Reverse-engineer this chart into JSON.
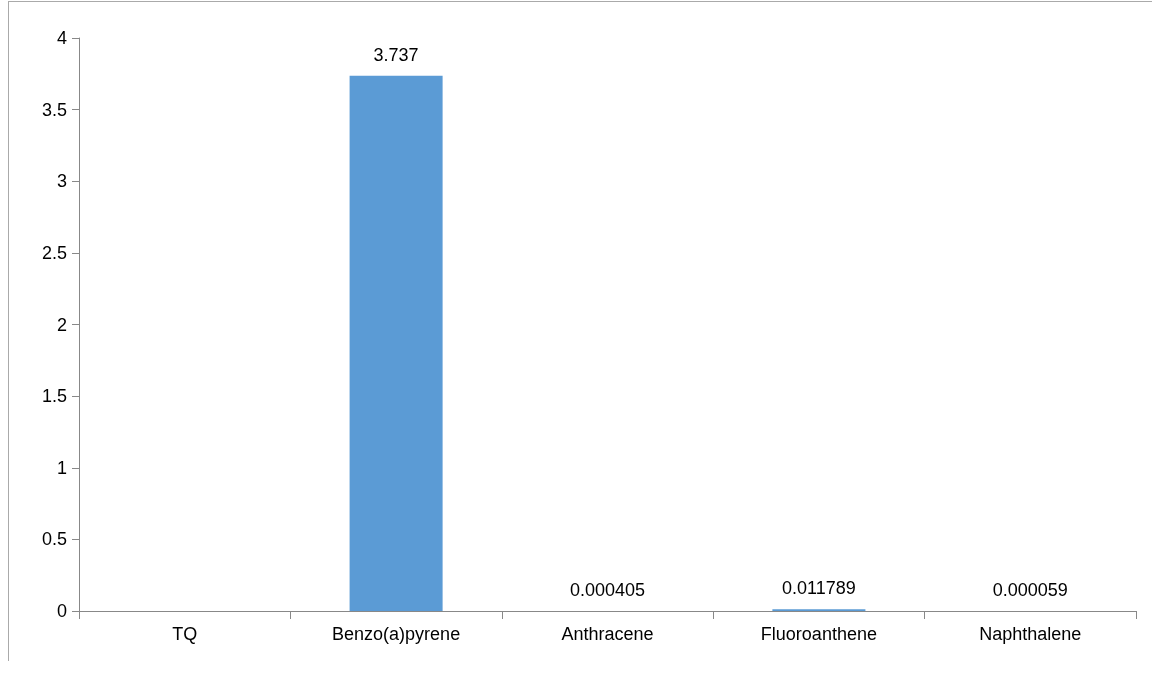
{
  "chart_data": {
    "type": "bar",
    "categories": [
      "TQ",
      "Benzo(a)pyrene",
      "Anthracene",
      "Fluoroanthene",
      "Naphthalene"
    ],
    "values": [
      null,
      3.737,
      0.000405,
      0.011789,
      5.9e-05
    ],
    "color": "#5b9bd5",
    "ylim": [
      0,
      4
    ],
    "yticks": [
      0,
      0.5,
      1,
      1.5,
      2,
      2.5,
      3,
      3.5,
      4
    ],
    "value_labels": [
      null,
      "3.737",
      "0.000405",
      "0.011789",
      "0.000059"
    ],
    "grid": false
  }
}
